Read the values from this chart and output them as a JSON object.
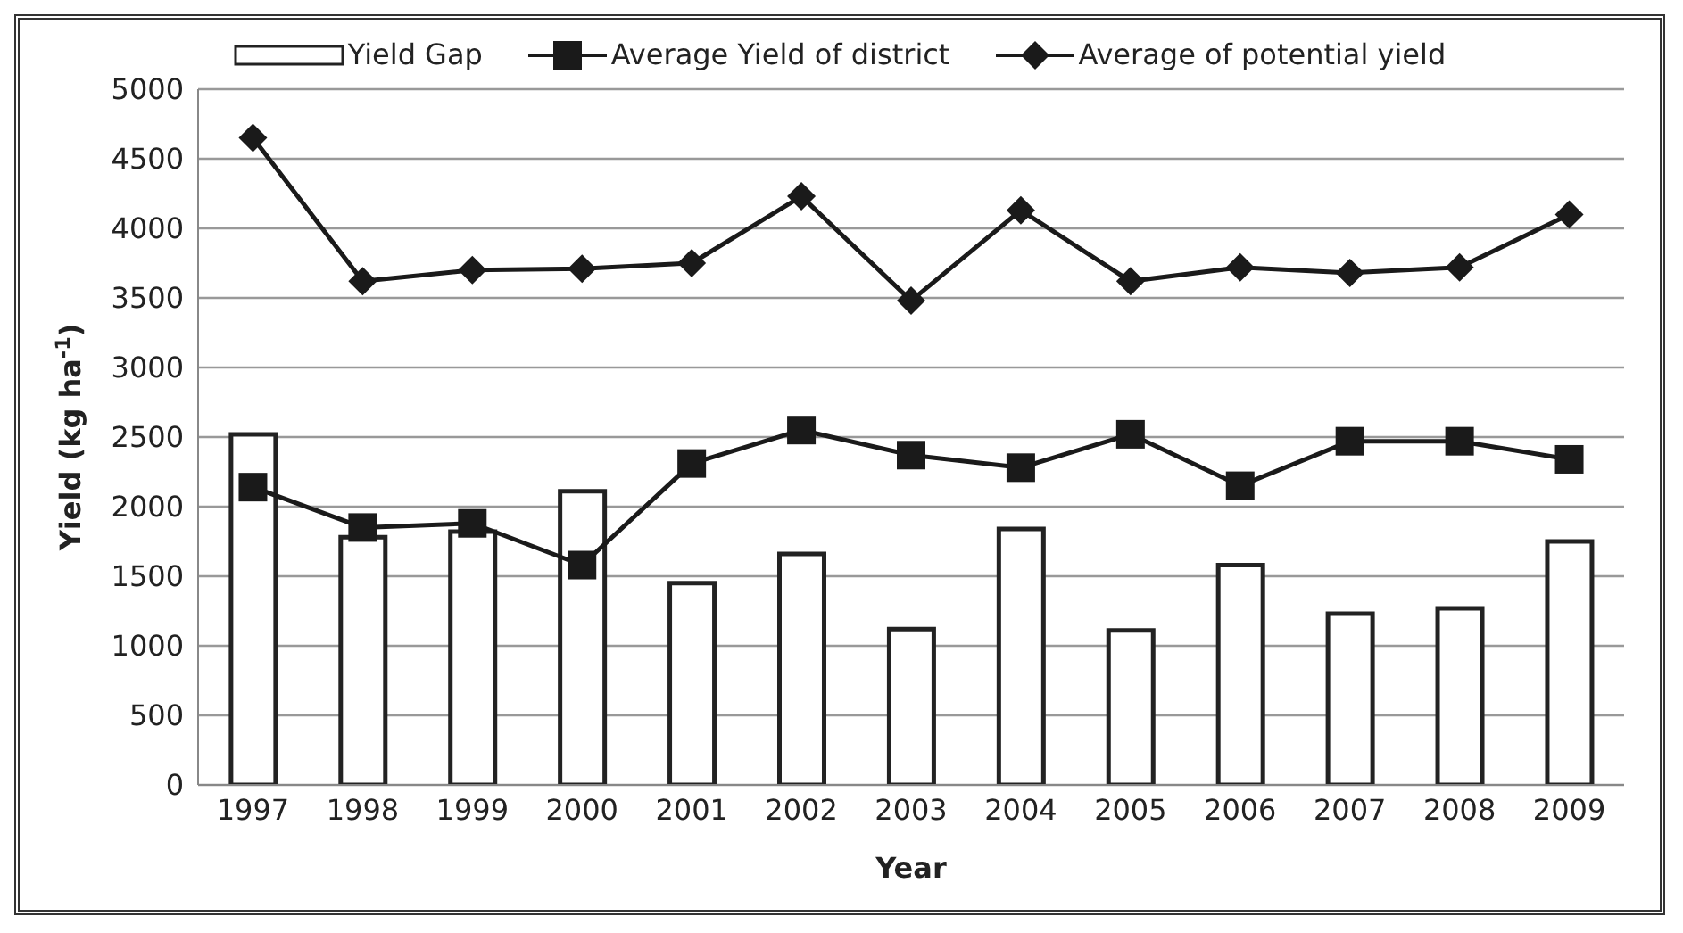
{
  "chart_data": {
    "type": "bar",
    "xlabel": "Year",
    "ylabel": "Yield (kg ha$^{-1}$)",
    "categories": [
      "1997",
      "1998",
      "1999",
      "2000",
      "2001",
      "2002",
      "2003",
      "2004",
      "2005",
      "2006",
      "2007",
      "2008",
      "2009"
    ],
    "series": [
      {
        "name": "Yield Gap",
        "color": "#ffffff",
        "values": [
          2520,
          1780,
          1820,
          2110,
          1450,
          1660,
          1120,
          1840,
          1110,
          1580,
          1230,
          1270,
          1750
        ]
      },
      {
        "name": "Average Yield of district",
        "type": "line",
        "marker": "square",
        "color": "#1a1a1a",
        "values": [
          2140,
          1850,
          1880,
          1580,
          2310,
          2550,
          2370,
          2280,
          2520,
          2150,
          2470,
          2470,
          2340
        ]
      },
      {
        "name": "Average of potential yield",
        "type": "line",
        "marker": "diamond",
        "color": "#1a1a1a",
        "values": [
          4650,
          3620,
          3700,
          3710,
          3750,
          4230,
          3480,
          4130,
          3620,
          3720,
          3680,
          3720,
          4100
        ]
      }
    ],
    "ylim": [
      0,
      5000
    ],
    "yticks": [
      0,
      500,
      1000,
      1500,
      2000,
      2500,
      3000,
      3500,
      4000,
      4500,
      5000
    ],
    "grid": "y",
    "legend": "top"
  }
}
